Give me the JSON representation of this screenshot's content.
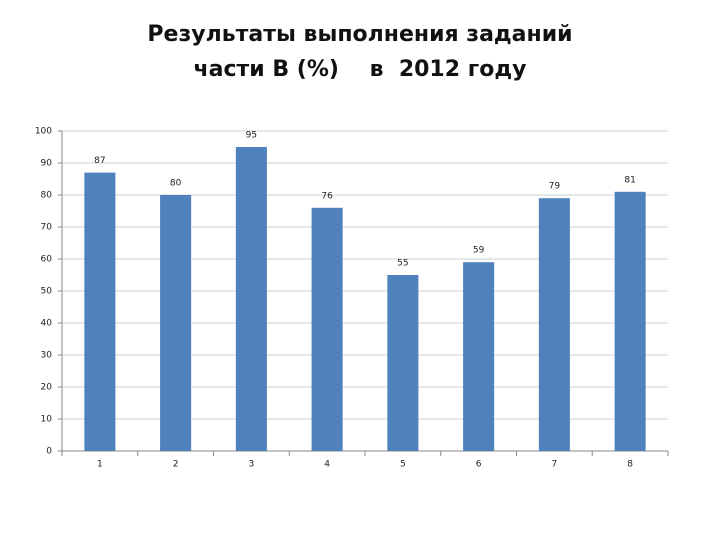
{
  "chart_data": {
    "type": "bar",
    "title": [
      "Результаты выполнения заданий",
      "части В (%)    в  2012 году"
    ],
    "categories": [
      "1",
      "2",
      "3",
      "4",
      "5",
      "6",
      "7",
      "8"
    ],
    "values": [
      87,
      80,
      95,
      76,
      55,
      59,
      79,
      81
    ],
    "color": "#4f81bd",
    "ylim": [
      0,
      100
    ],
    "yticks": [
      0,
      10,
      20,
      30,
      40,
      50,
      60,
      70,
      80,
      90,
      100
    ],
    "grid": true
  }
}
